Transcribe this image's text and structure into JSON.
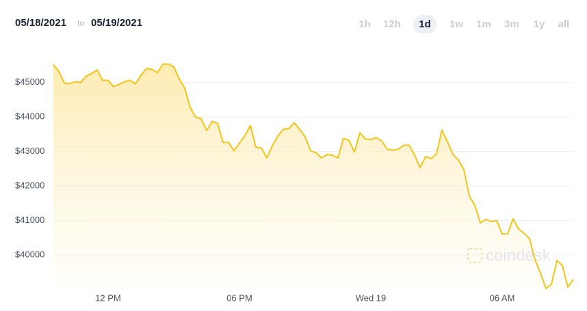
{
  "header": {
    "from": "05/18/2021",
    "to_word": "to",
    "to": "05/19/2021"
  },
  "range_buttons": [
    "1h",
    "12h",
    "1d",
    "1w",
    "1m",
    "3m",
    "1y",
    "all"
  ],
  "active_range": "1d",
  "watermark": "coindesk",
  "chart_data": {
    "type": "area",
    "color": "#f2c318",
    "grid": true,
    "x": [
      9.5,
      9.75,
      10,
      10.25,
      10.5,
      10.75,
      11,
      11.25,
      11.5,
      11.75,
      12,
      12.25,
      12.5,
      12.75,
      13,
      13.25,
      13.5,
      13.75,
      14,
      14.25,
      14.5,
      14.75,
      15,
      15.25,
      15.5,
      15.75,
      16,
      16.25,
      16.5,
      16.75,
      17,
      17.25,
      17.5,
      17.75,
      18,
      18.25,
      18.5,
      18.75,
      19,
      19.25,
      19.5,
      19.75,
      20,
      20.25,
      20.5,
      20.75,
      21,
      21.25,
      21.5,
      21.75,
      22,
      22.25,
      22.5,
      22.75,
      23,
      23.25,
      23.5,
      23.75,
      24,
      24.25,
      24.5,
      24.75,
      25,
      25.25,
      25.5,
      25.75,
      26,
      26.25,
      26.5,
      26.75,
      27,
      27.25,
      27.5,
      27.75,
      28,
      28.25,
      28.5,
      28.75,
      29,
      29.25,
      29.5,
      29.75,
      30,
      30.25,
      30.5,
      30.75,
      31,
      31.25,
      31.5,
      31.75,
      32,
      32.25,
      32.5,
      32.75,
      33,
      33.25
    ],
    "values": [
      45510,
      45320,
      44980,
      44960,
      45020,
      45000,
      45180,
      45260,
      45360,
      45060,
      45060,
      44880,
      44940,
      45020,
      45060,
      44960,
      45200,
      45400,
      45380,
      45280,
      45530,
      45530,
      45450,
      45100,
      44840,
      44270,
      43990,
      43950,
      43600,
      43870,
      43810,
      43260,
      43260,
      43020,
      43240,
      43460,
      43750,
      43120,
      43100,
      42810,
      43160,
      43440,
      43640,
      43660,
      43830,
      43640,
      43420,
      43020,
      42960,
      42810,
      42910,
      42890,
      42810,
      43380,
      43320,
      42980,
      43540,
      43360,
      43340,
      43400,
      43300,
      43060,
      43040,
      43060,
      43180,
      43180,
      42890,
      42530,
      42850,
      42790,
      42930,
      43620,
      43280,
      42910,
      42750,
      42470,
      41700,
      41440,
      40930,
      41030,
      40970,
      40990,
      40610,
      40610,
      41050,
      40750,
      40630,
      40470,
      39860,
      39470,
      39030,
      39150,
      39840,
      39690,
      39070,
      39290
    ],
    "xlim": [
      9.5,
      33.25
    ],
    "xticks": [
      {
        "value": 12,
        "label": "12 PM"
      },
      {
        "value": 18,
        "label": "06 PM"
      },
      {
        "value": 24,
        "label": "Wed 19"
      },
      {
        "value": 30,
        "label": "06 AM"
      }
    ],
    "ylim": [
      38970,
      46000
    ],
    "yticks": [
      {
        "value": 40000,
        "label": "$40000"
      },
      {
        "value": 41000,
        "label": "$41000"
      },
      {
        "value": 42000,
        "label": "$42000"
      },
      {
        "value": 43000,
        "label": "$43000"
      },
      {
        "value": 44000,
        "label": "$44000"
      },
      {
        "value": 45000,
        "label": "$45000"
      }
    ]
  }
}
